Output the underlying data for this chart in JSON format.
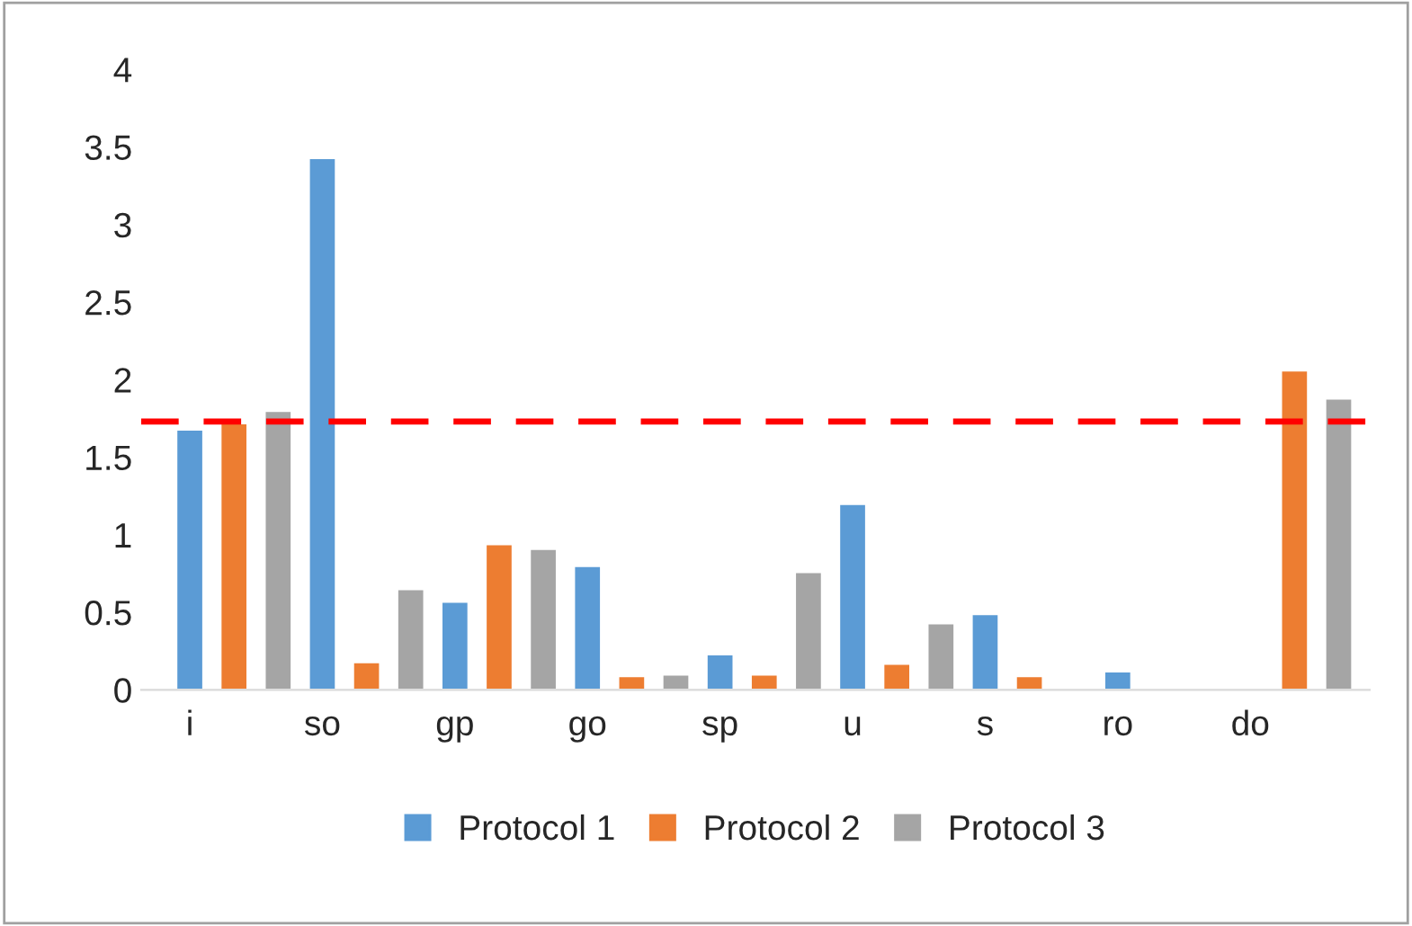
{
  "chart_data": {
    "type": "bar",
    "categories": [
      "i",
      null,
      null,
      "so",
      null,
      null,
      "gp",
      null,
      null,
      "go",
      null,
      null,
      "sp",
      null,
      null,
      "u",
      null,
      null,
      "s",
      null,
      null,
      "ro",
      null,
      null,
      "do",
      null,
      null
    ],
    "series": [
      {
        "name": "Protocol 1",
        "color": "#5b9bd5",
        "values": [
          1.68,
          null,
          null,
          3.43,
          null,
          null,
          0.57,
          null,
          null,
          0.8,
          null,
          null,
          0.23,
          null,
          null,
          1.2,
          null,
          null,
          0.49,
          null,
          null,
          0.12,
          null,
          null,
          null,
          null,
          null
        ]
      },
      {
        "name": "Protocol 2",
        "color": "#ed7d31",
        "values": [
          null,
          1.72,
          null,
          null,
          0.18,
          null,
          null,
          0.94,
          null,
          null,
          0.09,
          null,
          null,
          0.1,
          null,
          null,
          0.17,
          null,
          null,
          0.09,
          null,
          null,
          null,
          null,
          null,
          2.06,
          null
        ]
      },
      {
        "name": "Protocol 3",
        "color": "#a5a5a5",
        "values": [
          null,
          null,
          1.8,
          null,
          null,
          0.65,
          null,
          null,
          0.91,
          null,
          null,
          0.1,
          null,
          null,
          0.76,
          null,
          null,
          0.43,
          null,
          null,
          null,
          null,
          null,
          null,
          null,
          null,
          1.88
        ]
      }
    ],
    "ylim": [
      0,
      4
    ],
    "yticks": [
      0,
      {
        "value": 0.5,
        "label": "0.5"
      },
      1,
      {
        "value": 1.5,
        "label": "1.5"
      },
      2,
      {
        "value": 2.5,
        "label": "2.5"
      },
      3,
      {
        "value": 3.5,
        "label": "3.5"
      },
      4
    ],
    "ref_lines": [
      {
        "axis": "y",
        "value": 1.73,
        "color": "#ff0000",
        "line_style": "dashed"
      }
    ],
    "grid": false,
    "legend": "bottom"
  }
}
